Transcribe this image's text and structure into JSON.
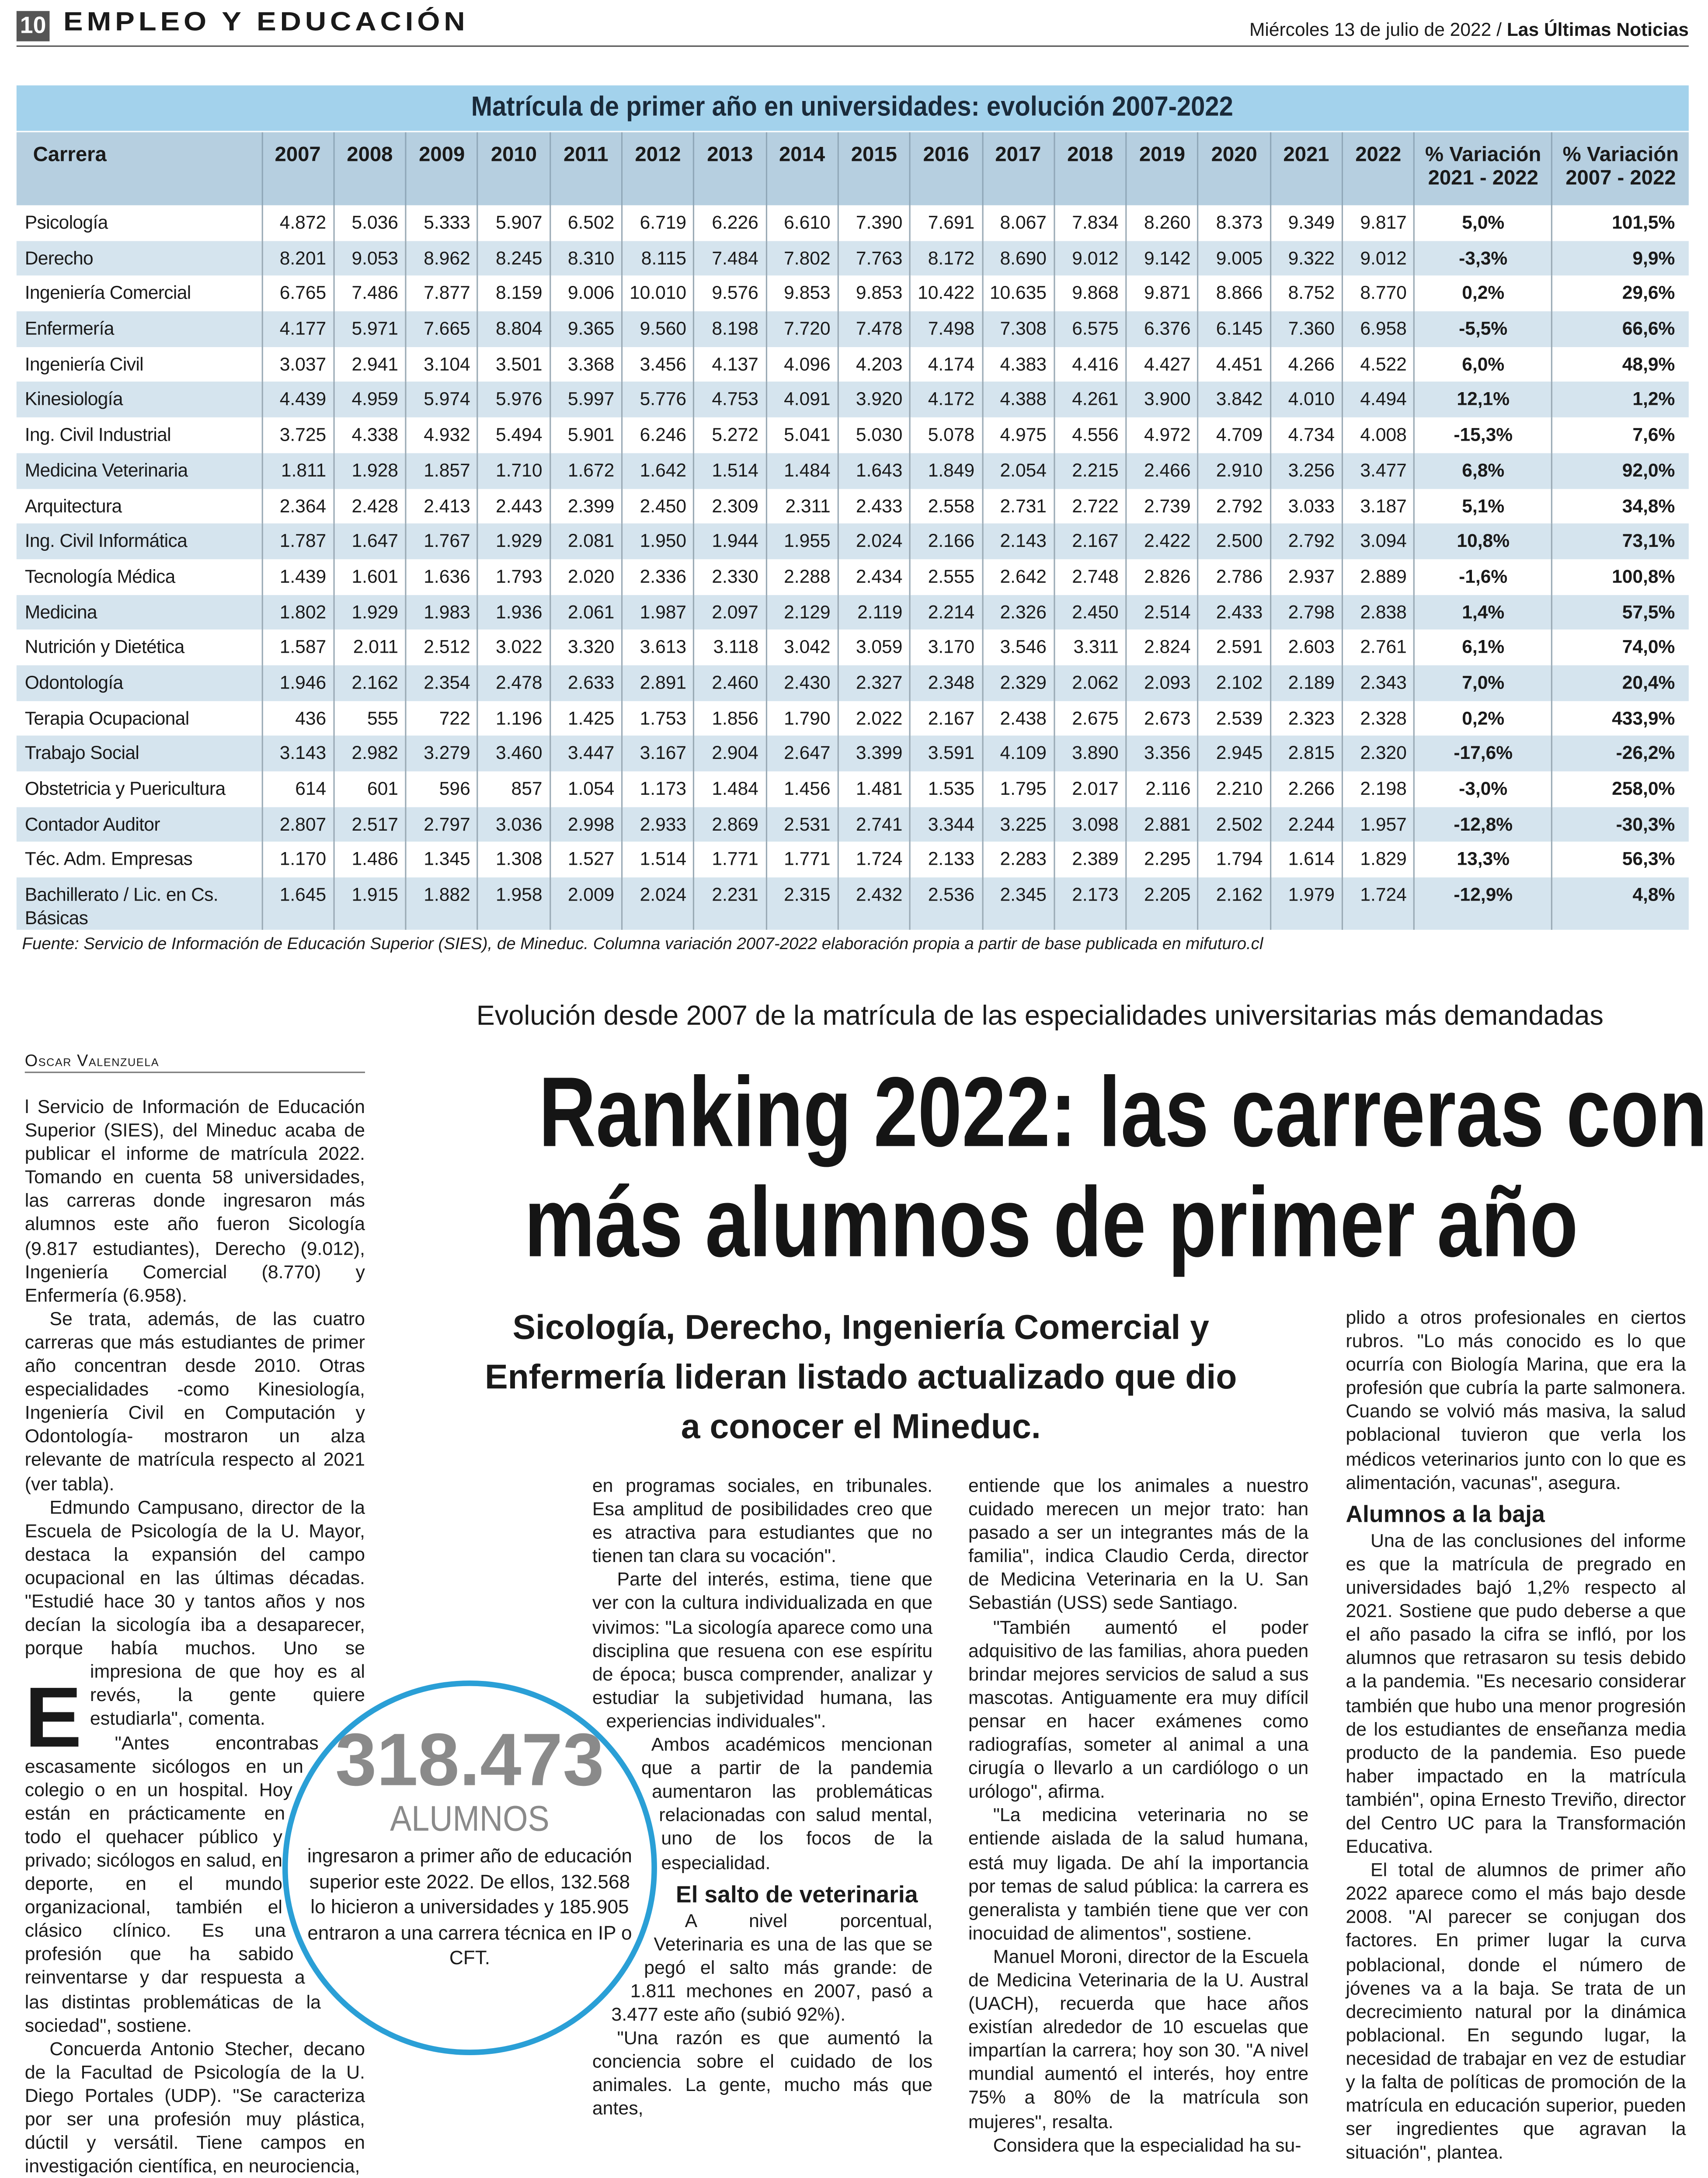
{
  "header": {
    "page_number": "10",
    "section": "EMPLEO Y EDUCACIÓN",
    "date": "Miércoles 13 de julio de 2022 /",
    "newspaper": "Las Últimas Noticias"
  },
  "table": {
    "title": "Matrícula de primer año en universidades: evolución 2007-2022",
    "columns": {
      "carrera": "Carrera",
      "years": [
        "2007",
        "2008",
        "2009",
        "2010",
        "2011",
        "2012",
        "2013",
        "2014",
        "2015",
        "2016",
        "2017",
        "2018",
        "2019",
        "2020",
        "2021",
        "2022"
      ],
      "var1_line1": "% Variación",
      "var1_line2": "2021 - 2022",
      "var2_line1": "% Variación",
      "var2_line2": "2007 - 2022"
    },
    "rows": [
      {
        "carrera": "Psicología",
        "values": [
          "4.872",
          "5.036",
          "5.333",
          "5.907",
          "6.502",
          "6.719",
          "6.226",
          "6.610",
          "7.390",
          "7.691",
          "8.067",
          "7.834",
          "8.260",
          "8.373",
          "9.349",
          "9.817"
        ],
        "var1": "5,0%",
        "var2": "101,5%"
      },
      {
        "carrera": "Derecho",
        "values": [
          "8.201",
          "9.053",
          "8.962",
          "8.245",
          "8.310",
          "8.115",
          "7.484",
          "7.802",
          "7.763",
          "8.172",
          "8.690",
          "9.012",
          "9.142",
          "9.005",
          "9.322",
          "9.012"
        ],
        "var1": "-3,3%",
        "var2": "9,9%"
      },
      {
        "carrera": "Ingeniería Comercial",
        "values": [
          "6.765",
          "7.486",
          "7.877",
          "8.159",
          "9.006",
          "10.010",
          "9.576",
          "9.853",
          "9.853",
          "10.422",
          "10.635",
          "9.868",
          "9.871",
          "8.866",
          "8.752",
          "8.770"
        ],
        "var1": "0,2%",
        "var2": "29,6%"
      },
      {
        "carrera": "Enfermería",
        "values": [
          "4.177",
          "5.971",
          "7.665",
          "8.804",
          "9.365",
          "9.560",
          "8.198",
          "7.720",
          "7.478",
          "7.498",
          "7.308",
          "6.575",
          "6.376",
          "6.145",
          "7.360",
          "6.958"
        ],
        "var1": "-5,5%",
        "var2": "66,6%"
      },
      {
        "carrera": "Ingeniería Civil",
        "values": [
          "3.037",
          "2.941",
          "3.104",
          "3.501",
          "3.368",
          "3.456",
          "4.137",
          "4.096",
          "4.203",
          "4.174",
          "4.383",
          "4.416",
          "4.427",
          "4.451",
          "4.266",
          "4.522"
        ],
        "var1": "6,0%",
        "var2": "48,9%"
      },
      {
        "carrera": "Kinesiología",
        "values": [
          "4.439",
          "4.959",
          "5.974",
          "5.976",
          "5.997",
          "5.776",
          "4.753",
          "4.091",
          "3.920",
          "4.172",
          "4.388",
          "4.261",
          "3.900",
          "3.842",
          "4.010",
          "4.494"
        ],
        "var1": "12,1%",
        "var2": "1,2%"
      },
      {
        "carrera": "Ing. Civil Industrial",
        "values": [
          "3.725",
          "4.338",
          "4.932",
          "5.494",
          "5.901",
          "6.246",
          "5.272",
          "5.041",
          "5.030",
          "5.078",
          "4.975",
          "4.556",
          "4.972",
          "4.709",
          "4.734",
          "4.008"
        ],
        "var1": "-15,3%",
        "var2": "7,6%"
      },
      {
        "carrera": "Medicina Veterinaria",
        "values": [
          "1.811",
          "1.928",
          "1.857",
          "1.710",
          "1.672",
          "1.642",
          "1.514",
          "1.484",
          "1.643",
          "1.849",
          "2.054",
          "2.215",
          "2.466",
          "2.910",
          "3.256",
          "3.477"
        ],
        "var1": "6,8%",
        "var2": "92,0%"
      },
      {
        "carrera": "Arquitectura",
        "values": [
          "2.364",
          "2.428",
          "2.413",
          "2.443",
          "2.399",
          "2.450",
          "2.309",
          "2.311",
          "2.433",
          "2.558",
          "2.731",
          "2.722",
          "2.739",
          "2.792",
          "3.033",
          "3.187"
        ],
        "var1": "5,1%",
        "var2": "34,8%"
      },
      {
        "carrera": "Ing. Civil Informática",
        "values": [
          "1.787",
          "1.647",
          "1.767",
          "1.929",
          "2.081",
          "1.950",
          "1.944",
          "1.955",
          "2.024",
          "2.166",
          "2.143",
          "2.167",
          "2.422",
          "2.500",
          "2.792",
          "3.094"
        ],
        "var1": "10,8%",
        "var2": "73,1%"
      },
      {
        "carrera": "Tecnología Médica",
        "values": [
          "1.439",
          "1.601",
          "1.636",
          "1.793",
          "2.020",
          "2.336",
          "2.330",
          "2.288",
          "2.434",
          "2.555",
          "2.642",
          "2.748",
          "2.826",
          "2.786",
          "2.937",
          "2.889"
        ],
        "var1": "-1,6%",
        "var2": "100,8%"
      },
      {
        "carrera": "Medicina",
        "values": [
          "1.802",
          "1.929",
          "1.983",
          "1.936",
          "2.061",
          "1.987",
          "2.097",
          "2.129",
          "2.119",
          "2.214",
          "2.326",
          "2.450",
          "2.514",
          "2.433",
          "2.798",
          "2.838"
        ],
        "var1": "1,4%",
        "var2": "57,5%"
      },
      {
        "carrera": "Nutrición y Dietética",
        "values": [
          "1.587",
          "2.011",
          "2.512",
          "3.022",
          "3.320",
          "3.613",
          "3.118",
          "3.042",
          "3.059",
          "3.170",
          "3.546",
          "3.311",
          "2.824",
          "2.591",
          "2.603",
          "2.761"
        ],
        "var1": "6,1%",
        "var2": "74,0%"
      },
      {
        "carrera": "Odontología",
        "values": [
          "1.946",
          "2.162",
          "2.354",
          "2.478",
          "2.633",
          "2.891",
          "2.460",
          "2.430",
          "2.327",
          "2.348",
          "2.329",
          "2.062",
          "2.093",
          "2.102",
          "2.189",
          "2.343"
        ],
        "var1": "7,0%",
        "var2": "20,4%"
      },
      {
        "carrera": "Terapia Ocupacional",
        "values": [
          "436",
          "555",
          "722",
          "1.196",
          "1.425",
          "1.753",
          "1.856",
          "1.790",
          "2.022",
          "2.167",
          "2.438",
          "2.675",
          "2.673",
          "2.539",
          "2.323",
          "2.328"
        ],
        "var1": "0,2%",
        "var2": "433,9%"
      },
      {
        "carrera": "Trabajo Social",
        "values": [
          "3.143",
          "2.982",
          "3.279",
          "3.460",
          "3.447",
          "3.167",
          "2.904",
          "2.647",
          "3.399",
          "3.591",
          "4.109",
          "3.890",
          "3.356",
          "2.945",
          "2.815",
          "2.320"
        ],
        "var1": "-17,6%",
        "var2": "-26,2%"
      },
      {
        "carrera": "Obstetricia y Puericultura",
        "values": [
          "614",
          "601",
          "596",
          "857",
          "1.054",
          "1.173",
          "1.484",
          "1.456",
          "1.481",
          "1.535",
          "1.795",
          "2.017",
          "2.116",
          "2.210",
          "2.266",
          "2.198"
        ],
        "var1": "-3,0%",
        "var2": "258,0%"
      },
      {
        "carrera": "Contador Auditor",
        "values": [
          "2.807",
          "2.517",
          "2.797",
          "3.036",
          "2.998",
          "2.933",
          "2.869",
          "2.531",
          "2.741",
          "3.344",
          "3.225",
          "3.098",
          "2.881",
          "2.502",
          "2.244",
          "1.957"
        ],
        "var1": "-12,8%",
        "var2": "-30,3%"
      },
      {
        "carrera": "Téc. Adm. Empresas",
        "values": [
          "1.170",
          "1.486",
          "1.345",
          "1.308",
          "1.527",
          "1.514",
          "1.771",
          "1.771",
          "1.724",
          "2.133",
          "2.283",
          "2.389",
          "2.295",
          "1.794",
          "1.614",
          "1.829"
        ],
        "var1": "13,3%",
        "var2": "56,3%"
      },
      {
        "carrera": "Bachillerato / Lic. en Cs. Básicas",
        "values": [
          "1.645",
          "1.915",
          "1.882",
          "1.958",
          "2.009",
          "2.024",
          "2.231",
          "2.315",
          "2.432",
          "2.536",
          "2.345",
          "2.173",
          "2.205",
          "2.162",
          "1.979",
          "1.724"
        ],
        "var1": "-12,9%",
        "var2": "4,8%"
      }
    ],
    "source": "Fuente: Servicio de Información de Educación Superior (SIES), de Mineduc. Columna variación 2007-2022 elaboración propia a partir de base publicada en mifuturo.cl"
  },
  "article": {
    "kicker": "Evolución desde 2007 de la matrícula de las especialidades universitarias más demandadas",
    "byline": "Oscar Valenzuela",
    "headline_line1": "Ranking 2022: las carreras con",
    "headline_line2": "más alumnos de primer año",
    "subhead": "Sicología, Derecho, Ingeniería Comercial y Enfermería lideran listado actualizado que dio a conocer el Mineduc.",
    "dropcap": "E",
    "col1": [
      "l Servicio de Información de Educación Superior (SIES), del Mineduc acaba de publicar el informe de matrícula 2022. Tomando en cuenta 58 universidades, las carreras donde ingresaron más alumnos este año fueron Sicología (9.817 estudiantes), Derecho (9.012), Ingeniería Comercial (8.770) y Enfermería (6.958).",
      "Se trata, además, de las cuatro carreras que más estudiantes de primer año concentran desde 2010. Otras especialidades -como Kinesiología, Ingeniería Civil en Computación y Odontología- mostraron un alza relevante de matrícula respecto al 2021 (ver tabla).",
      "Edmundo Campusano, director de la Escuela de Psicología de la U. Mayor, destaca la expansión del campo ocupacional en las últimas décadas. \"Estudié hace 30 y tantos años y nos decían la sicología iba a desaparecer, porque había muchos. Uno se impresiona de que hoy es al revés, la gente quiere estudiarla\", comenta.",
      "\"Antes encontrabas escasamente sicólogos en un colegio o en un hospital. Hoy están en prácticamente en todo el quehacer público y privado; sicólogos en salud, en deporte, en el mundo organizacional, también el clásico clínico. Es una profesión que ha sabido reinventarse y dar respuesta a las distintas problemáticas de la sociedad\", sostiene.",
      "Concuerda Antonio Stecher, decano de la Facultad de Psicología de la U. Diego Portales (UDP). \"Se caracteriza por ser una profesión muy plástica, dúctil y versátil. Tiene campos en investigación científica, en neurociencia,"
    ],
    "col2": [
      "en programas sociales, en tribunales. Esa amplitud de posibilidades creo que es atractiva para estudiantes que no tienen tan clara su vocación\".",
      "Parte del interés, estima, tiene que ver con la cultura individualizada en que vivimos: \"La sicología aparece como una disciplina que resuena con ese espíritu de época; busca comprender, analizar y estudiar la subjetividad humana, las experiencias individuales\".",
      "Ambos académicos mencionan que a partir de la pandemia aumentaron las problemáticas relacionadas con salud mental, uno de los focos de la especialidad."
    ],
    "col2_heading": "El salto de veterinaria",
    "col2_after": [
      "A nivel porcentual, Veterinaria es una de las que se pegó el salto más grande: de 1.811 mechones en 2007, pasó a 3.477 este año (subió 92%).",
      "\"Una razón es que aumentó la conciencia sobre el cuidado de los animales. La gente, mucho más que antes,"
    ],
    "col3": [
      "entiende que los animales a nuestro cuidado merecen un mejor trato: han pasado a ser un integrantes más de la familia\", indica Claudio Cerda, director de Medicina Veterinaria en la U. San Sebastián (USS) sede Santiago.",
      "\"También aumentó el poder adquisitivo de las familias, ahora pueden brindar mejores servicios de salud a sus mascotas. Antiguamente era muy difícil pensar en hacer exámenes como radiografías, someter al animal a una cirugía o llevarlo a un cardiólogo o un urólogo\", afirma.",
      "\"La medicina veterinaria no se entiende aislada de la salud humana, está muy ligada. De ahí la importancia por temas de salud pública: la carrera es generalista y también tiene que ver con inocuidad de alimentos\", sostiene.",
      "Manuel Moroni, director de la Escuela de Medicina Veterinaria de la U. Austral (UACH), recuerda que hace años existían alrededor de 10 escuelas que impartían la carrera; hoy son 30. \"A nivel mundial aumentó el interés, hoy entre 75% a 80% de la matrícula son mujeres\", resalta.",
      "Considera que la especialidad ha su-"
    ],
    "col4": [
      "plido a otros profesionales en ciertos rubros. \"Lo más conocido es lo que ocurría con Biología Marina, que era la profesión que cubría la parte salmonera. Cuando se volvió más masiva, la salud poblacional tuvieron que verla los médicos veterinarios junto con lo que es alimentación, vacunas\", asegura."
    ],
    "col4_heading": "Alumnos a la baja",
    "col4_after": [
      "Una de las conclusiones del informe es que la matrícula de pregrado en universidades bajó 1,2% respecto al 2021. Sostiene que pudo deberse a que el año pasado la cifra se infló, por los alumnos que retrasaron su tesis debido a la pandemia. \"Es necesario considerar también que hubo una menor progresión de los estudiantes de enseñanza media producto de la pandemia. Eso puede haber impactado en la matrícula también\", opina Ernesto Treviño, director del Centro UC para la Transformación Educativa.",
      "El total de alumnos de primer año 2022 aparece como el más bajo desde 2008. \"Al parecer se conjugan dos factores. En primer lugar la curva poblacional, donde el número de jóvenes va a la baja. Se trata de un decrecimiento natural por la dinámica poblacional. En segundo lugar, la necesidad de trabajar en vez de estudiar y la falta de políticas de promoción de la matrícula en educación superior, pueden ser ingredientes que agravan la situación\", plantea."
    ],
    "callout": {
      "number": "318.473",
      "label": "ALUMNOS",
      "text": "ingresaron a primer año de educación superior este 2022. De ellos, 132.568 lo hicieron a universidades y 185.905 entraron a una carrera técnica en IP o CFT."
    }
  },
  "colors": {
    "table_title_bg": "#a3d2ec",
    "table_header_bg": "#b6cfe0",
    "table_alt_row": "#d5e4ee",
    "callout_ring": "#2a9fd6",
    "callout_number": "#8a8a8a"
  }
}
